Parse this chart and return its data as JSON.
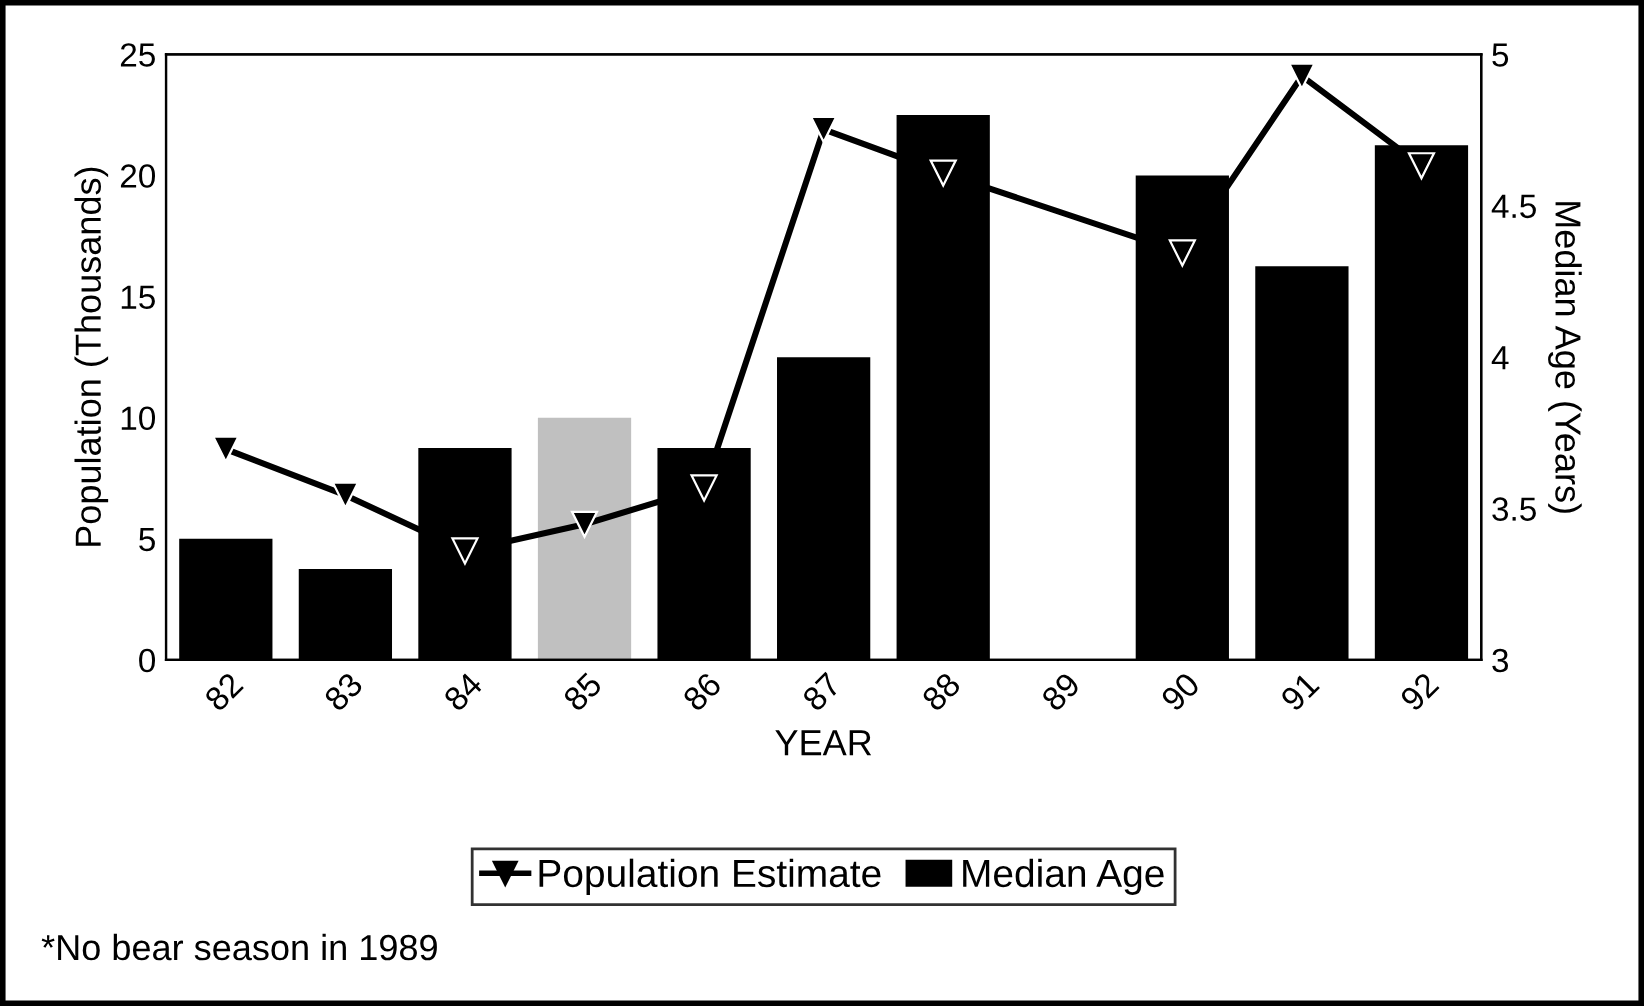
{
  "chart_data": {
    "type": "bar",
    "categories": [
      "82",
      "83",
      "84",
      "85",
      "86",
      "87",
      "88",
      "89",
      "90",
      "91",
      "92"
    ],
    "xlabel": "YEAR",
    "ylabel": "Population (Thousands)",
    "y2label": "Median Age (Years)",
    "series": [
      {
        "name": "Population Estimate",
        "type": "line",
        "color": "#000000",
        "marker": "triangle",
        "values": [
          8.7,
          6.8,
          4.5,
          5.6,
          7.1,
          21.9,
          20.1,
          null,
          16.8,
          24.1,
          20.4
        ]
      },
      {
        "name": "Median Age",
        "axis": "y2",
        "color": "#000000",
        "colors": [
          "#000000",
          "#000000",
          "#000000",
          "#c0c0c0",
          "#000000",
          "#000000",
          "#000000",
          "#000000",
          "#000000",
          "#000000",
          "#000000"
        ],
        "values": [
          3.4,
          3.3,
          3.7,
          3.8,
          3.7,
          4.0,
          4.8,
          null,
          4.6,
          4.3,
          4.7
        ]
      }
    ],
    "ylim": [
      0,
      25
    ],
    "yticks": [
      0,
      5,
      10,
      15,
      20,
      25
    ],
    "y2lim": [
      3,
      5
    ],
    "y2ticks": [
      3,
      3.5,
      4,
      4.5,
      5
    ],
    "grid": false,
    "legend": "bottom",
    "annotations": [
      "*No bear season in 1989"
    ]
  }
}
